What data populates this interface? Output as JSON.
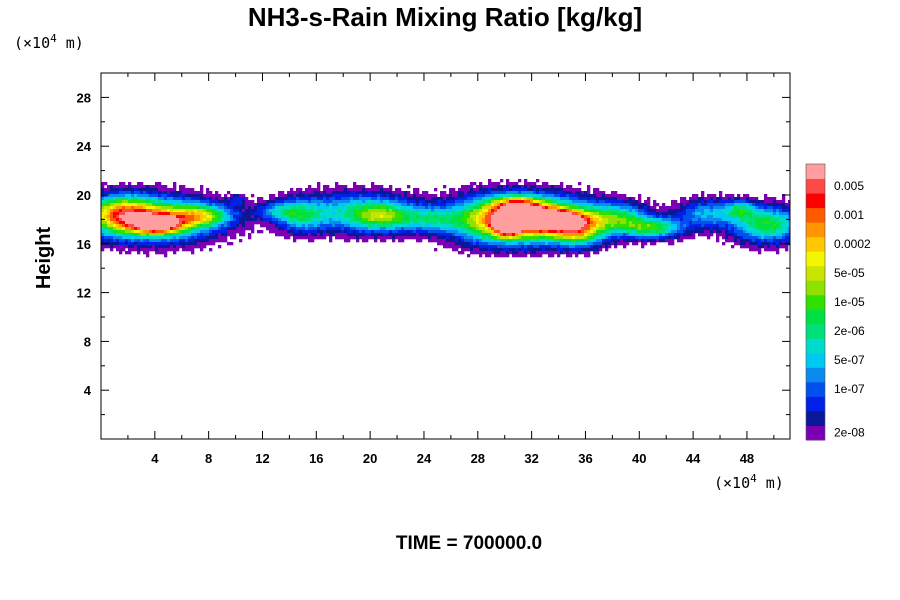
{
  "chart_data": {
    "type": "heatmap",
    "title": "NH3-s-Rain Mixing Ratio [kg/kg]",
    "ylabel": "Height",
    "xlabel": "",
    "x_unit_prefix": "(×10",
    "x_unit_exp": "4",
    "x_unit_suffix": " m)",
    "y_unit_prefix": "(×10",
    "y_unit_exp": "4",
    "y_unit_suffix": " m)",
    "xlim": [
      0,
      51.2
    ],
    "ylim": [
      0,
      30
    ],
    "x_ticks": [
      4,
      8,
      12,
      16,
      20,
      24,
      28,
      32,
      36,
      40,
      44,
      48
    ],
    "y_ticks": [
      4,
      8,
      12,
      16,
      20,
      24,
      28
    ],
    "time_label": "TIME = 700000.0",
    "colorbar": {
      "levels": [
        {
          "label": "2e-08",
          "color": "#7b00b4"
        },
        {
          "label": "",
          "color": "#0a1898"
        },
        {
          "label": "",
          "color": "#0020e8"
        },
        {
          "label": "1e-07",
          "color": "#0050f0"
        },
        {
          "label": "",
          "color": "#0a8aee"
        },
        {
          "label": "5e-07",
          "color": "#00c8f5"
        },
        {
          "label": "",
          "color": "#00dccc"
        },
        {
          "label": "2e-06",
          "color": "#00e078"
        },
        {
          "label": "",
          "color": "#00e040"
        },
        {
          "label": "1e-05",
          "color": "#30e000"
        },
        {
          "label": "",
          "color": "#90e000"
        },
        {
          "label": "5e-05",
          "color": "#c8e400"
        },
        {
          "label": "",
          "color": "#f5f500"
        },
        {
          "label": "0.0002",
          "color": "#ffc800"
        },
        {
          "label": "",
          "color": "#ff9600"
        },
        {
          "label": "0.001",
          "color": "#ff5a00"
        },
        {
          "label": "",
          "color": "#ff0000"
        },
        {
          "label": "0.005",
          "color": "#ff4848"
        },
        {
          "label": "",
          "color": "#ff9e9e"
        }
      ]
    },
    "field_blobs": [
      {
        "x": 4.0,
        "y": 18.0,
        "sx": 3.2,
        "sy": 1.2,
        "amp": 12.5
      },
      {
        "x": 4.2,
        "y": 17.6,
        "sx": 1.2,
        "sy": 0.5,
        "amp": 13.5
      },
      {
        "x": 1.5,
        "y": 18.5,
        "sx": 1.8,
        "sy": 1.0,
        "amp": 10.0
      },
      {
        "x": 7.5,
        "y": 18.3,
        "sx": 1.5,
        "sy": 0.6,
        "amp": 8.0
      },
      {
        "x": 10.2,
        "y": 19.6,
        "sx": 0.4,
        "sy": 0.3,
        "amp": 3.0
      },
      {
        "x": 13.0,
        "y": 18.7,
        "sx": 1.0,
        "sy": 0.5,
        "amp": 4.5
      },
      {
        "x": 14.8,
        "y": 18.3,
        "sx": 1.2,
        "sy": 0.9,
        "amp": 6.5
      },
      {
        "x": 19.0,
        "y": 18.6,
        "sx": 3.0,
        "sy": 1.1,
        "amp": 7.5
      },
      {
        "x": 21.0,
        "y": 18.2,
        "sx": 1.5,
        "sy": 0.8,
        "amp": 6.5
      },
      {
        "x": 24.5,
        "y": 18.0,
        "sx": 1.5,
        "sy": 0.7,
        "amp": 5.5
      },
      {
        "x": 29.5,
        "y": 18.0,
        "sx": 2.5,
        "sy": 1.3,
        "amp": 11.5
      },
      {
        "x": 33.0,
        "y": 18.0,
        "sx": 3.0,
        "sy": 1.2,
        "amp": 14.0
      },
      {
        "x": 33.3,
        "y": 18.0,
        "sx": 1.6,
        "sy": 0.5,
        "amp": 16.5
      },
      {
        "x": 30.2,
        "y": 17.6,
        "sx": 0.6,
        "sy": 0.6,
        "amp": 15.5
      },
      {
        "x": 35.5,
        "y": 17.0,
        "sx": 1.3,
        "sy": 0.8,
        "amp": 9.0
      },
      {
        "x": 31.0,
        "y": 19.2,
        "sx": 1.2,
        "sy": 0.5,
        "amp": 8.0
      },
      {
        "x": 38.5,
        "y": 18.2,
        "sx": 1.5,
        "sy": 0.8,
        "amp": 7.0
      },
      {
        "x": 41.0,
        "y": 17.3,
        "sx": 1.6,
        "sy": 0.6,
        "amp": 9.5
      },
      {
        "x": 45.0,
        "y": 18.5,
        "sx": 1.5,
        "sy": 0.8,
        "amp": 6.0
      },
      {
        "x": 49.5,
        "y": 17.6,
        "sx": 1.8,
        "sy": 1.0,
        "amp": 10.0
      },
      {
        "x": 47.5,
        "y": 18.8,
        "sx": 0.8,
        "sy": 0.5,
        "amp": 6.0
      }
    ]
  }
}
